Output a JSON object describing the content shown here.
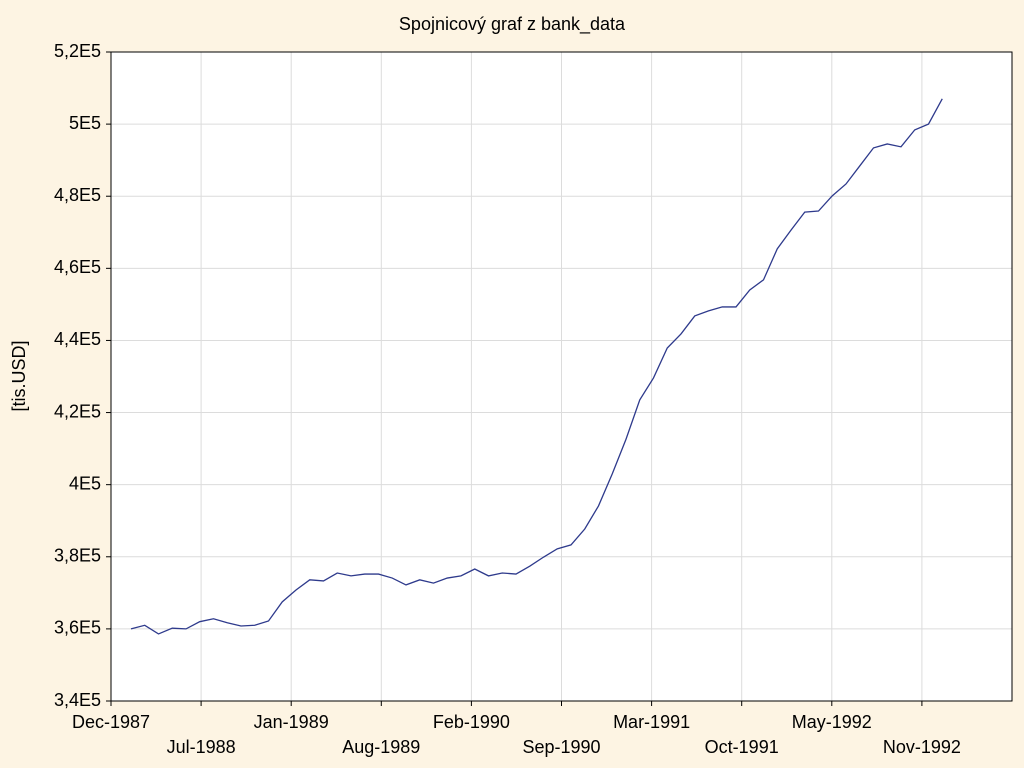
{
  "chart_data": {
    "type": "line",
    "title": "Spojnicový graf z bank_data",
    "y_label": "[tis.USD]",
    "x": [
      "Jan-1988",
      "Feb-1988",
      "Mar-1988",
      "Apr-1988",
      "May-1988",
      "Jun-1988",
      "Jul-1988",
      "Aug-1988",
      "Sep-1988",
      "Oct-1988",
      "Nov-1988",
      "Dec-1988",
      "Jan-1989",
      "Feb-1989",
      "Mar-1989",
      "Apr-1989",
      "May-1989",
      "Jun-1989",
      "Jul-1989",
      "Aug-1989",
      "Sep-1989",
      "Oct-1989",
      "Nov-1989",
      "Dec-1989",
      "Jan-1990",
      "Feb-1990",
      "Mar-1990",
      "Apr-1990",
      "May-1990",
      "Jun-1990",
      "Jul-1990",
      "Aug-1990",
      "Sep-1990",
      "Oct-1990",
      "Nov-1990",
      "Dec-1990",
      "Jan-1991",
      "Feb-1991",
      "Mar-1991",
      "Apr-1991",
      "May-1991",
      "Jun-1991",
      "Jul-1991",
      "Aug-1991",
      "Sep-1991",
      "Oct-1991",
      "Nov-1991",
      "Dec-1991",
      "Jan-1992",
      "Feb-1992",
      "Mar-1992",
      "Apr-1992",
      "May-1992",
      "Jun-1992",
      "Jul-1992",
      "Aug-1992",
      "Sep-1992",
      "Oct-1992",
      "Nov-1992",
      "Dec-1992"
    ],
    "values": [
      360000,
      361000,
      358600,
      360200,
      360000,
      362000,
      362800,
      361700,
      360800,
      361000,
      362200,
      367500,
      370800,
      373600,
      373300,
      375500,
      374700,
      375200,
      375200,
      374100,
      372200,
      373600,
      372700,
      374100,
      374700,
      376600,
      374700,
      375500,
      375200,
      377400,
      379900,
      382200,
      383300,
      387700,
      394100,
      403000,
      412600,
      423500,
      429600,
      437900,
      441800,
      446800,
      448200,
      449300,
      449300,
      454000,
      456800,
      465400,
      470600,
      475600,
      475900,
      480100,
      483400,
      488400,
      493400,
      494500,
      493700,
      498400,
      500000,
      507000
    ],
    "color": "#2e3a8c",
    "ylim": [
      340000,
      520000
    ],
    "yticks": [
      {
        "value": 340000,
        "label": "3,4E5"
      },
      {
        "value": 360000,
        "label": "3,6E5"
      },
      {
        "value": 380000,
        "label": "3,8E5"
      },
      {
        "value": 400000,
        "label": "4E5"
      },
      {
        "value": 420000,
        "label": "4,2E5"
      },
      {
        "value": 440000,
        "label": "4,4E5"
      },
      {
        "value": 460000,
        "label": "4,6E5"
      },
      {
        "value": 480000,
        "label": "4,8E5"
      },
      {
        "value": 500000,
        "label": "5E5"
      },
      {
        "value": 520000,
        "label": "5,2E5"
      }
    ],
    "xticks": [
      "Dec-1987",
      "Jul-1988",
      "Jan-1989",
      "Aug-1989",
      "Feb-1990",
      "Sep-1990",
      "Mar-1991",
      "Oct-1991",
      "May-1992",
      "Nov-1992"
    ],
    "grid": true
  }
}
